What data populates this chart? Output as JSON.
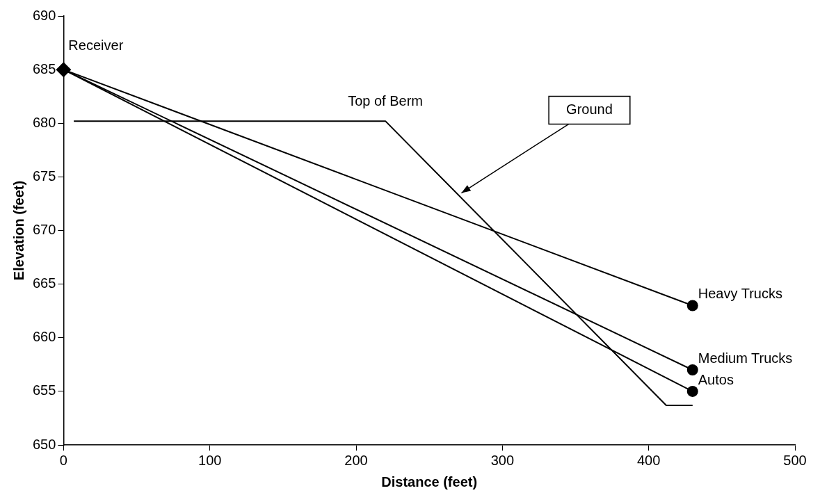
{
  "chart_data": {
    "type": "line",
    "xlabel": "Distance (feet)",
    "ylabel": "Elevation (feet)",
    "xlim": [
      0,
      500
    ],
    "ylim": [
      650,
      690
    ],
    "xticks": [
      0,
      100,
      200,
      300,
      400,
      500
    ],
    "yticks": [
      650,
      655,
      660,
      665,
      670,
      675,
      680,
      685,
      690
    ],
    "grid": false,
    "legend": false,
    "series": [
      {
        "name": "Receiver",
        "type": "scatter",
        "x": [
          0
        ],
        "values": [
          685
        ],
        "marker": "diamond",
        "color": "#000000"
      },
      {
        "name": "Top of Berm",
        "x": [
          7,
          220,
          412,
          430
        ],
        "values": [
          680.2,
          680.2,
          653.7,
          653.7
        ],
        "marker": "none",
        "color": "#000000"
      },
      {
        "name": "Heavy Trucks",
        "x": [
          0,
          430
        ],
        "values": [
          685,
          663
        ],
        "marker": "circle",
        "color": "#000000"
      },
      {
        "name": "Medium Trucks",
        "x": [
          0,
          430
        ],
        "values": [
          685,
          657
        ],
        "marker": "circle",
        "color": "#000000"
      },
      {
        "name": "Autos",
        "x": [
          0,
          430
        ],
        "values": [
          685,
          655
        ],
        "marker": "circle",
        "color": "#000000"
      }
    ],
    "annotations": [
      {
        "text": "Ground",
        "x": 272,
        "y": 673.5
      }
    ]
  }
}
